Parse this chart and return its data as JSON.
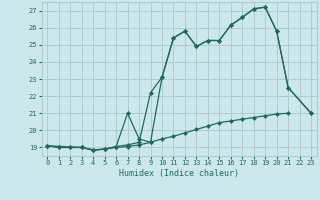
{
  "xlabel": "Humidex (Indice chaleur)",
  "bg_color": "#cde8ec",
  "grid_color": "#aecdd1",
  "line_color": "#1e6b5e",
  "xlim": [
    -0.5,
    23.5
  ],
  "ylim": [
    18.5,
    27.5
  ],
  "xticks": [
    0,
    1,
    2,
    3,
    4,
    5,
    6,
    7,
    8,
    9,
    10,
    11,
    12,
    13,
    14,
    15,
    16,
    17,
    18,
    19,
    20,
    21,
    22,
    23
  ],
  "yticks": [
    19,
    20,
    21,
    22,
    23,
    24,
    25,
    26,
    27
  ],
  "line1_x": [
    0,
    1,
    2,
    3,
    4,
    5,
    6,
    7,
    8,
    9,
    10,
    11,
    12,
    13,
    14,
    15,
    16,
    17,
    18,
    19,
    20,
    21
  ],
  "line1_y": [
    19.1,
    19.0,
    19.0,
    19.0,
    18.85,
    18.9,
    19.0,
    19.05,
    19.15,
    19.3,
    19.5,
    19.65,
    19.85,
    20.05,
    20.25,
    20.45,
    20.55,
    20.65,
    20.75,
    20.85,
    20.95,
    21.0
  ],
  "line2_x": [
    0,
    1,
    2,
    3,
    4,
    5,
    6,
    7,
    8,
    9,
    10,
    11,
    12,
    13,
    14,
    15,
    16,
    17,
    18,
    19,
    20,
    21,
    23
  ],
  "line2_y": [
    19.1,
    19.0,
    19.0,
    19.0,
    18.85,
    18.9,
    19.05,
    19.15,
    19.3,
    22.2,
    23.1,
    25.4,
    25.8,
    24.9,
    25.25,
    25.25,
    26.15,
    26.6,
    27.1,
    27.2,
    25.8,
    22.5,
    21.0
  ],
  "line3_x": [
    0,
    3,
    4,
    5,
    6,
    7,
    8,
    9,
    10,
    11,
    12,
    13,
    14,
    15,
    16,
    17,
    18,
    19,
    20,
    21,
    23
  ],
  "line3_y": [
    19.1,
    19.0,
    18.85,
    18.9,
    19.05,
    21.0,
    19.5,
    19.3,
    23.1,
    25.4,
    25.8,
    24.9,
    25.25,
    25.25,
    26.15,
    26.6,
    27.1,
    27.2,
    25.8,
    22.5,
    21.0
  ]
}
